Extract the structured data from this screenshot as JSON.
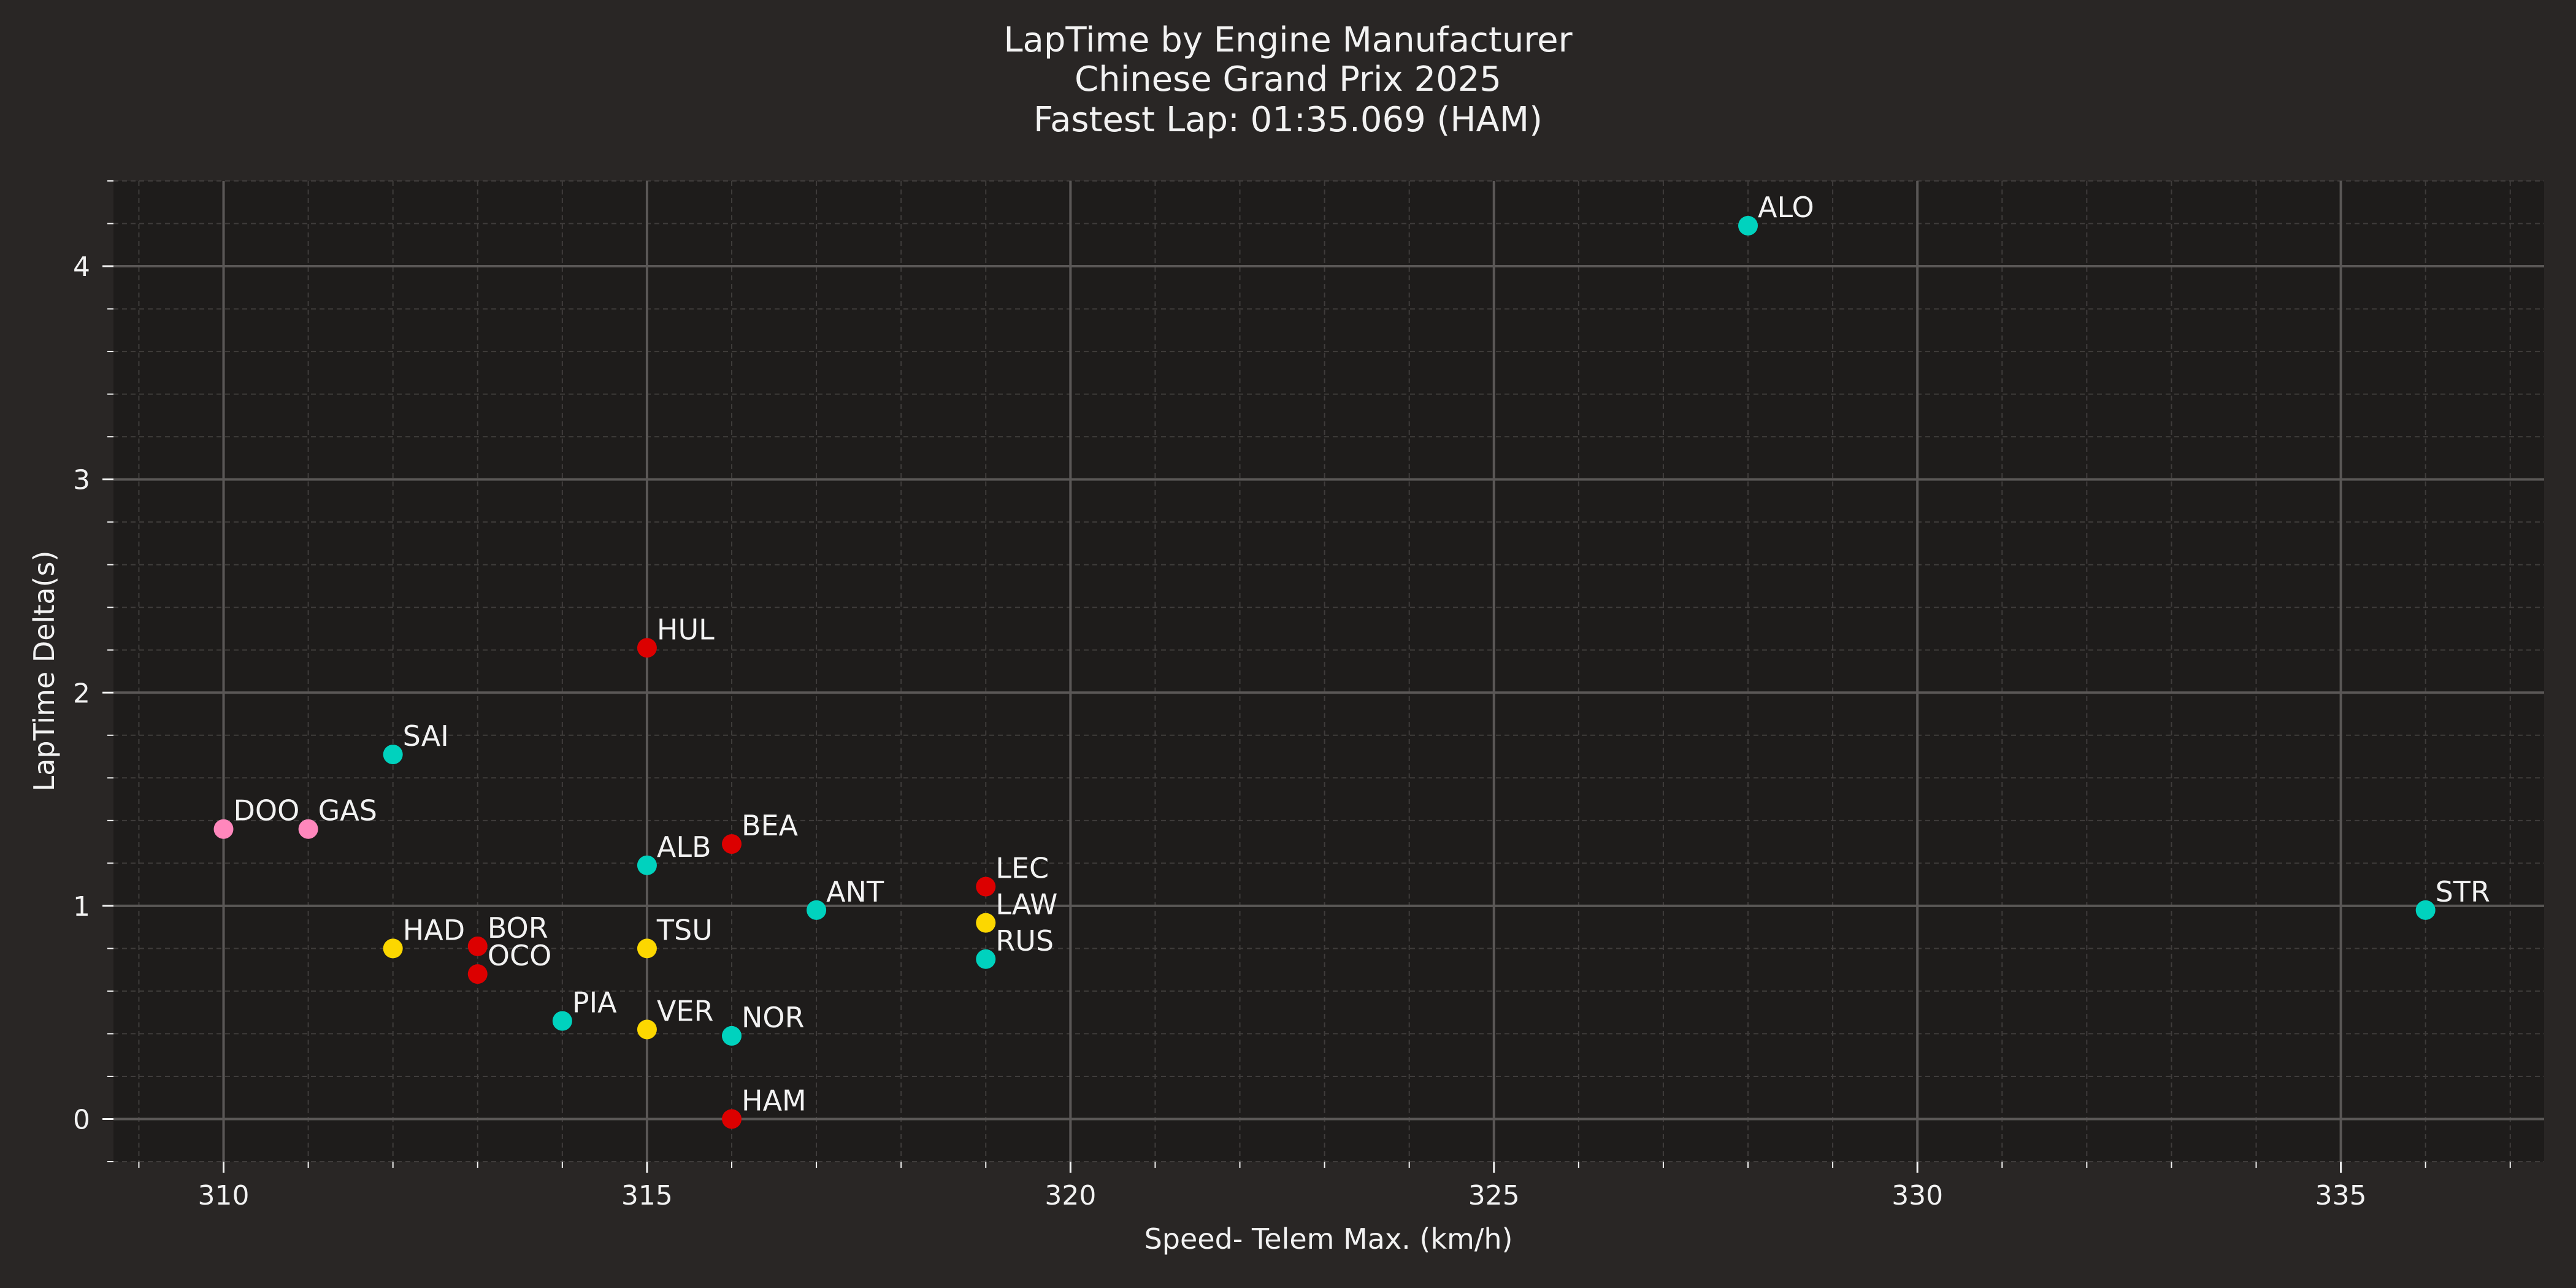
{
  "colors": {
    "figure_bg": "#292625",
    "plot_bg": "#1e1c1b",
    "grid_major": "#5a5756",
    "grid_minor": "#3f3c3b",
    "text": "#f2f2f2",
    "ferrari": "#dc0000",
    "mercedes": "#00d2be",
    "honda_rbpt": "#fcd700",
    "renault": "#ff87bc"
  },
  "chart_data": {
    "type": "scatter",
    "title_lines": [
      "LapTime by Engine Manufacturer",
      "Chinese Grand Prix 2025",
      "Fastest Lap: 01:35.069 (HAM)"
    ],
    "xlabel": "Speed- Telem Max. (km/h)",
    "ylabel": "LapTime Delta(s)",
    "xlim": [
      308.7,
      337.4
    ],
    "ylim": [
      -0.2,
      4.4
    ],
    "xticks": [
      310,
      315,
      320,
      325,
      330,
      335
    ],
    "yticks": [
      0,
      1,
      2,
      3,
      4
    ],
    "x_minor_step": 1,
    "y_minor_step": 0.2,
    "grid": true,
    "points": [
      {
        "label": "ALO",
        "x": 328,
        "y": 4.19,
        "color": "#00d2be"
      },
      {
        "label": "HUL",
        "x": 315,
        "y": 2.21,
        "color": "#dc0000"
      },
      {
        "label": "SAI",
        "x": 312,
        "y": 1.71,
        "color": "#00d2be"
      },
      {
        "label": "DOO",
        "x": 310,
        "y": 1.36,
        "color": "#ff87bc"
      },
      {
        "label": "GAS",
        "x": 311,
        "y": 1.36,
        "color": "#ff87bc"
      },
      {
        "label": "BEA",
        "x": 316,
        "y": 1.29,
        "color": "#dc0000"
      },
      {
        "label": "ALB",
        "x": 315,
        "y": 1.19,
        "color": "#00d2be"
      },
      {
        "label": "LEC",
        "x": 319,
        "y": 1.09,
        "color": "#dc0000"
      },
      {
        "label": "ANT",
        "x": 317,
        "y": 0.98,
        "color": "#00d2be"
      },
      {
        "label": "STR",
        "x": 336,
        "y": 0.98,
        "color": "#00d2be"
      },
      {
        "label": "LAW",
        "x": 319,
        "y": 0.92,
        "color": "#fcd700"
      },
      {
        "label": "HAD",
        "x": 312,
        "y": 0.8,
        "color": "#fcd700"
      },
      {
        "label": "BOR",
        "x": 313,
        "y": 0.81,
        "color": "#dc0000"
      },
      {
        "label": "TSU",
        "x": 315,
        "y": 0.8,
        "color": "#fcd700"
      },
      {
        "label": "RUS",
        "x": 319,
        "y": 0.75,
        "color": "#00d2be"
      },
      {
        "label": "OCO",
        "x": 313,
        "y": 0.68,
        "color": "#dc0000"
      },
      {
        "label": "PIA",
        "x": 314,
        "y": 0.46,
        "color": "#00d2be"
      },
      {
        "label": "VER",
        "x": 315,
        "y": 0.42,
        "color": "#fcd700"
      },
      {
        "label": "NOR",
        "x": 316,
        "y": 0.39,
        "color": "#00d2be"
      },
      {
        "label": "HAM",
        "x": 316,
        "y": 0.0,
        "color": "#dc0000"
      }
    ]
  }
}
